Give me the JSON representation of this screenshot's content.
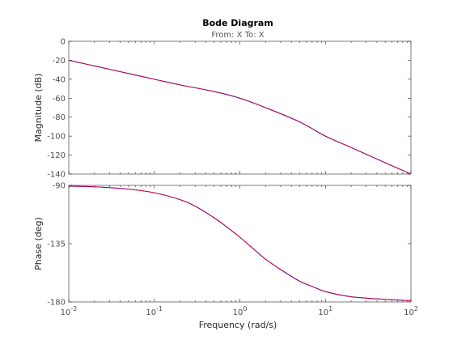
{
  "chart_data": {
    "type": "line",
    "title": "Bode Diagram",
    "subtitle": "From: X  To: X",
    "xlabel": "Frequency  (rad/s)",
    "x_scale": "log",
    "xlim": [
      0.01,
      100
    ],
    "x_ticks": [
      {
        "value": 0.01,
        "base": "10",
        "exp": "-2"
      },
      {
        "value": 0.1,
        "base": "10",
        "exp": "-1"
      },
      {
        "value": 1,
        "base": "10",
        "exp": "0"
      },
      {
        "value": 10,
        "base": "10",
        "exp": "1"
      },
      {
        "value": 100,
        "base": "10",
        "exp": "2"
      }
    ],
    "grid": false,
    "panels": [
      {
        "name": "magnitude",
        "ylabel": "Magnitude (dB)",
        "ylim": [
          -140,
          0
        ],
        "y_ticks": [
          0,
          -20,
          -40,
          -60,
          -80,
          -100,
          -120,
          -140
        ],
        "series": [
          {
            "color": "#0000ff",
            "x": [
              0.01,
              0.02,
              0.05,
              0.1,
              0.2,
              0.5,
              1,
              2,
              5,
              10,
              20,
              50,
              100
            ],
            "y": [
              -20,
              -26,
              -34,
              -40,
              -46,
              -53,
              -60,
              -70,
              -85,
              -100,
              -112,
              -128,
              -140
            ]
          },
          {
            "color": "#ff0000",
            "x": [
              0.01,
              0.02,
              0.05,
              0.1,
              0.2,
              0.5,
              1,
              2,
              5,
              10,
              20,
              50,
              100
            ],
            "y": [
              -20,
              -26,
              -34,
              -40,
              -46,
              -53,
              -60,
              -70,
              -85,
              -100,
              -112,
              -128,
              -140
            ]
          }
        ]
      },
      {
        "name": "phase",
        "ylabel": "Phase (deg)",
        "ylim": [
          -180,
          -90
        ],
        "y_ticks": [
          -90,
          -135,
          -180
        ],
        "series": [
          {
            "color": "#0000ff",
            "x": [
              0.01,
              0.02,
              0.05,
              0.1,
              0.2,
              0.3,
              0.5,
              0.7,
              1,
              1.5,
              2,
              3,
              5,
              7,
              10,
              20,
              50,
              100
            ],
            "y": [
              -90.6,
              -91.1,
              -92.9,
              -95.7,
              -101,
              -106,
              -115,
              -122,
              -130,
              -140,
              -147,
              -155,
              -164,
              -168,
              -172,
              -176,
              -178,
              -179
            ]
          },
          {
            "color": "#ff0000",
            "x": [
              0.01,
              0.02,
              0.05,
              0.1,
              0.2,
              0.3,
              0.5,
              0.7,
              1,
              1.5,
              2,
              3,
              5,
              7,
              10,
              20,
              50,
              100
            ],
            "y": [
              -90.6,
              -91.1,
              -92.9,
              -95.7,
              -101,
              -106,
              -115,
              -122,
              -130,
              -140,
              -147,
              -155,
              -164,
              -168,
              -172,
              -176,
              -178,
              -179
            ]
          }
        ]
      }
    ]
  }
}
